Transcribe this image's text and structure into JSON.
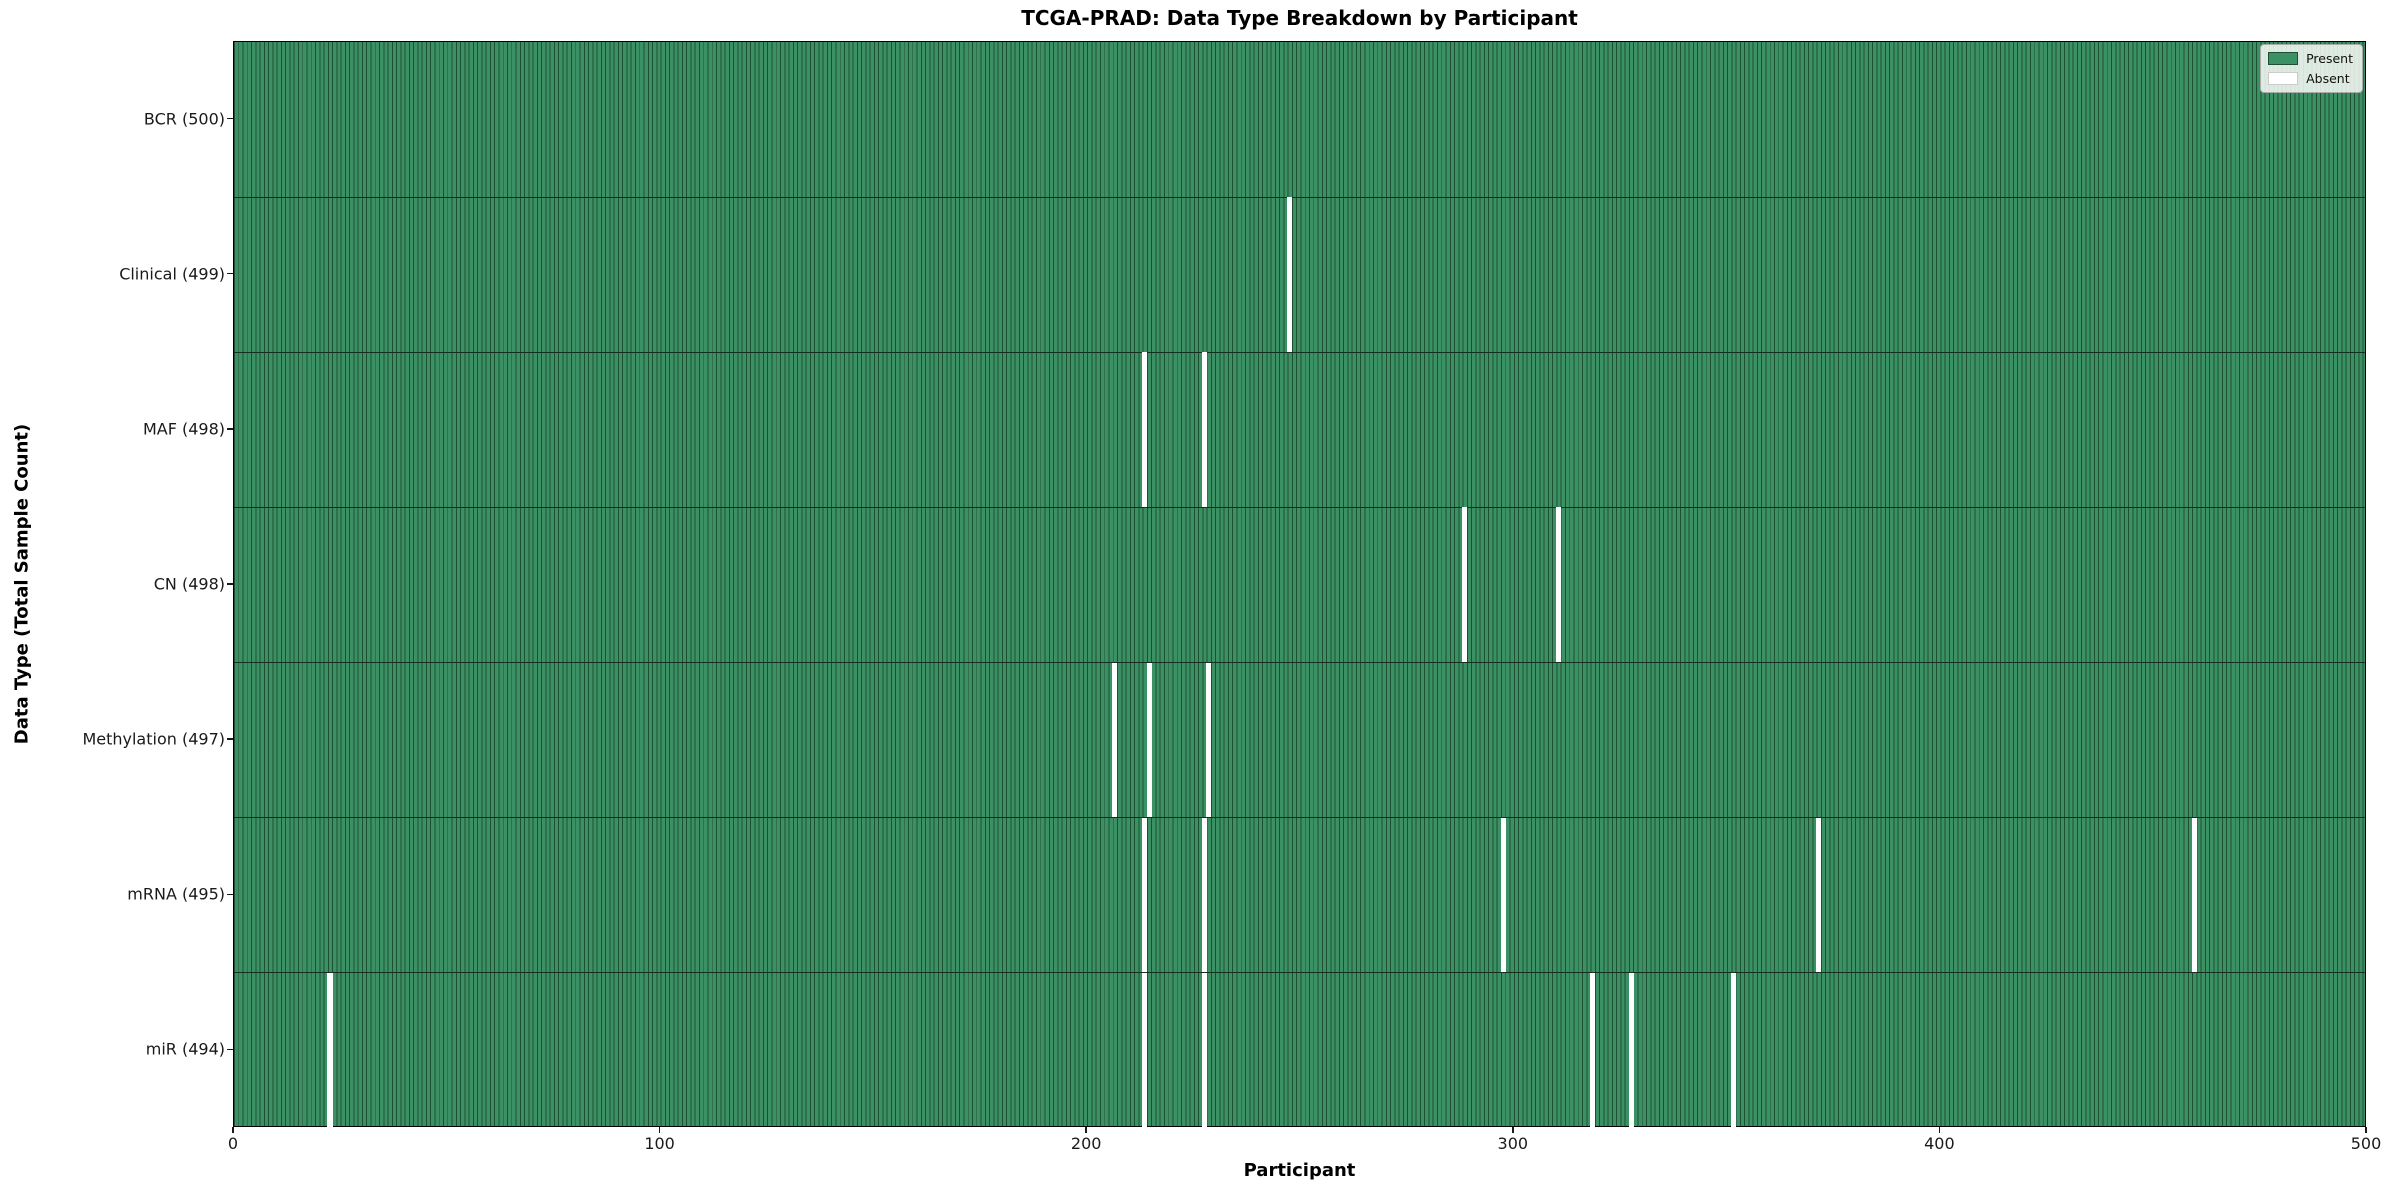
{
  "chart_data": {
    "type": "heatmap",
    "title": "TCGA-PRAD: Data Type Breakdown by Participant",
    "xlabel": "Participant",
    "ylabel": "Data Type (Total Sample Count)",
    "x_range": [
      0,
      500
    ],
    "x_ticks": [
      0,
      100,
      200,
      300,
      400,
      500
    ],
    "n_participants": 500,
    "grid": false,
    "legend_position": "upper right",
    "legend": {
      "present": "Present",
      "absent": "Absent"
    },
    "colors": {
      "present_fill": "#3b9164",
      "cell_edge": "#1d4f33",
      "absent_fill": "#ffffff"
    },
    "rows": [
      {
        "label": "BCR (500)",
        "data_type": "BCR",
        "total": 500,
        "absent_participants": []
      },
      {
        "label": "Clinical (499)",
        "data_type": "Clinical",
        "total": 499,
        "absent_participants": [
          247
        ]
      },
      {
        "label": "MAF (498)",
        "data_type": "MAF",
        "total": 498,
        "absent_participants": [
          213,
          227
        ]
      },
      {
        "label": "CN (498)",
        "data_type": "CN",
        "total": 498,
        "absent_participants": [
          288,
          310
        ]
      },
      {
        "label": "Methylation (497)",
        "data_type": "Methylation",
        "total": 497,
        "absent_participants": [
          206,
          214,
          228
        ]
      },
      {
        "label": "mRNA (495)",
        "data_type": "mRNA",
        "total": 495,
        "absent_participants": [
          213,
          227,
          297,
          371,
          459
        ]
      },
      {
        "label": "miR (494)",
        "data_type": "miR",
        "total": 494,
        "absent_participants": [
          22,
          213,
          227,
          318,
          327,
          351
        ]
      }
    ]
  }
}
